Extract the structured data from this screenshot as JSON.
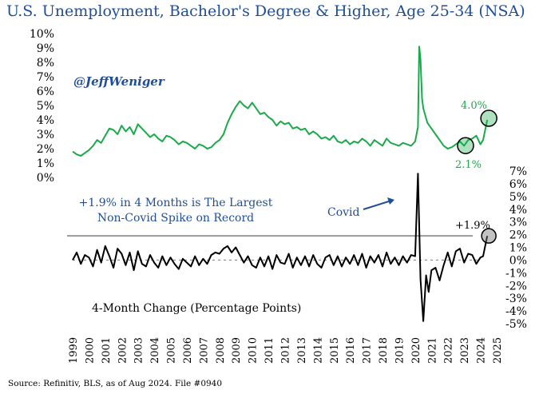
{
  "title": "U.S. Unemployment, Bachelor's Degree & Higher, Age 25-34 (NSA)",
  "source": "Source: Refinitiv, BLS, as of Aug 2024. File #0940",
  "colors": {
    "title": "#1f4e96",
    "upper_line": "#1aaa4a",
    "lower_line": "#000000",
    "reference_line": "#999999",
    "annotation": "#1f4e96"
  },
  "chart_data": [
    {
      "type": "line",
      "panel": "upper",
      "ylim": [
        0,
        10
      ],
      "yticks": [
        "0%",
        "1%",
        "2%",
        "3%",
        "4%",
        "5%",
        "6%",
        "7%",
        "8%",
        "9%",
        "10%"
      ],
      "handle": "@JeffWeniger",
      "series": [
        {
          "x": [
            1999.0,
            1999.25,
            1999.5,
            1999.75,
            2000.0,
            2000.25,
            2000.5,
            2000.75,
            2001.0,
            2001.25,
            2001.5,
            2001.75,
            2002.0,
            2002.25,
            2002.5,
            2002.75,
            2003.0,
            2003.25,
            2003.5,
            2003.75,
            2004.0,
            2004.25,
            2004.5,
            2004.75,
            2005.0,
            2005.25,
            2005.5,
            2005.75,
            2006.0,
            2006.25,
            2006.5,
            2006.75,
            2007.0,
            2007.25,
            2007.5,
            2007.75,
            2008.0,
            2008.25,
            2008.5,
            2008.75,
            2009.0,
            2009.25,
            2009.5,
            2009.75,
            2010.0,
            2010.25,
            2010.5,
            2010.75,
            2011.0,
            2011.25,
            2011.5,
            2011.75,
            2012.0,
            2012.25,
            2012.5,
            2012.75,
            2013.0,
            2013.25,
            2013.5,
            2013.75,
            2014.0,
            2014.25,
            2014.5,
            2014.75,
            2015.0,
            2015.25,
            2015.5,
            2015.75,
            2016.0,
            2016.25,
            2016.5,
            2016.75,
            2017.0,
            2017.25,
            2017.5,
            2017.75,
            2018.0,
            2018.25,
            2018.5,
            2018.75,
            2019.0,
            2019.25,
            2019.5,
            2019.75,
            2020.0,
            2020.17,
            2020.25,
            2020.33,
            2020.42,
            2020.5,
            2020.75,
            2021.0,
            2021.25,
            2021.5,
            2021.75,
            2022.0,
            2022.25,
            2022.5,
            2022.75,
            2023.0,
            2023.25,
            2023.5,
            2023.75,
            2024.0,
            2024.17,
            2024.42
          ],
          "values": [
            1.8,
            1.6,
            1.5,
            1.7,
            1.9,
            2.2,
            2.6,
            2.4,
            2.9,
            3.4,
            3.3,
            3.0,
            3.6,
            3.2,
            3.5,
            3.0,
            3.7,
            3.4,
            3.1,
            2.8,
            3.0,
            2.7,
            2.5,
            2.9,
            2.8,
            2.6,
            2.3,
            2.5,
            2.4,
            2.2,
            2.0,
            2.3,
            2.2,
            2.0,
            2.1,
            2.4,
            2.6,
            3.0,
            3.8,
            4.4,
            4.9,
            5.3,
            5.0,
            4.8,
            5.2,
            4.8,
            4.4,
            4.5,
            4.2,
            4.0,
            3.6,
            3.9,
            3.7,
            3.8,
            3.4,
            3.5,
            3.3,
            3.4,
            3.0,
            3.2,
            3.0,
            2.7,
            2.8,
            2.6,
            2.9,
            2.5,
            2.4,
            2.6,
            2.3,
            2.5,
            2.4,
            2.7,
            2.5,
            2.2,
            2.6,
            2.4,
            2.2,
            2.7,
            2.4,
            2.3,
            2.2,
            2.4,
            2.3,
            2.2,
            2.5,
            3.5,
            9.1,
            8.2,
            5.5,
            4.8,
            3.8,
            3.4,
            3.0,
            2.6,
            2.2,
            2.0,
            2.1,
            2.3,
            2.5,
            2.2,
            2.6,
            2.7,
            2.9,
            2.3,
            2.6,
            4.0
          ]
        }
      ],
      "annotations": [
        "4.0%",
        "2.1%"
      ]
    },
    {
      "type": "line",
      "panel": "lower",
      "ylabel": "4-Month Change (Percentage Points)",
      "ylim": [
        -5,
        7
      ],
      "yticks": [
        "-5%",
        "-4%",
        "-3%",
        "-2%",
        "-1%",
        "0%",
        "1%",
        "2%",
        "3%",
        "4%",
        "5%",
        "6%",
        "7%"
      ],
      "reference_line": 1.9,
      "series": [
        {
          "x": [
            1999.0,
            1999.25,
            1999.5,
            1999.75,
            2000.0,
            2000.25,
            2000.5,
            2000.75,
            2001.0,
            2001.25,
            2001.5,
            2001.75,
            2002.0,
            2002.25,
            2002.5,
            2002.75,
            2003.0,
            2003.25,
            2003.5,
            2003.75,
            2004.0,
            2004.25,
            2004.5,
            2004.75,
            2005.0,
            2005.25,
            2005.5,
            2005.75,
            2006.0,
            2006.25,
            2006.5,
            2006.75,
            2007.0,
            2007.25,
            2007.5,
            2007.75,
            2008.0,
            2008.25,
            2008.5,
            2008.75,
            2009.0,
            2009.25,
            2009.5,
            2009.75,
            2010.0,
            2010.25,
            2010.5,
            2010.75,
            2011.0,
            2011.25,
            2011.5,
            2011.75,
            2012.0,
            2012.25,
            2012.5,
            2012.75,
            2013.0,
            2013.25,
            2013.5,
            2013.75,
            2014.0,
            2014.25,
            2014.5,
            2014.75,
            2015.0,
            2015.25,
            2015.5,
            2015.75,
            2016.0,
            2016.25,
            2016.5,
            2016.75,
            2017.0,
            2017.25,
            2017.5,
            2017.75,
            2018.0,
            2018.25,
            2018.5,
            2018.75,
            2019.0,
            2019.25,
            2019.5,
            2019.75,
            2020.0,
            2020.17,
            2020.33,
            2020.5,
            2020.67,
            2020.83,
            2021.0,
            2021.25,
            2021.5,
            2021.75,
            2022.0,
            2022.25,
            2022.5,
            2022.75,
            2023.0,
            2023.25,
            2023.5,
            2023.75,
            2024.0,
            2024.17,
            2024.42
          ],
          "values": [
            0.0,
            0.6,
            -0.3,
            0.4,
            0.2,
            -0.5,
            0.8,
            -0.2,
            1.1,
            0.3,
            -0.6,
            0.9,
            0.5,
            -0.4,
            0.6,
            -0.8,
            0.7,
            -0.3,
            -0.5,
            0.4,
            -0.2,
            -0.6,
            0.3,
            -0.4,
            0.2,
            -0.3,
            -0.7,
            0.1,
            -0.2,
            -0.5,
            0.3,
            -0.4,
            0.1,
            -0.3,
            0.4,
            0.6,
            0.5,
            0.9,
            1.1,
            0.6,
            1.0,
            0.4,
            -0.2,
            0.3,
            -0.4,
            -0.6,
            0.2,
            -0.5,
            0.3,
            -0.7,
            0.4,
            -0.2,
            -0.3,
            0.5,
            -0.6,
            0.2,
            -0.4,
            0.3,
            -0.5,
            0.4,
            -0.3,
            -0.6,
            0.2,
            0.4,
            -0.4,
            0.3,
            -0.5,
            0.2,
            -0.3,
            0.4,
            -0.4,
            0.5,
            -0.6,
            0.3,
            -0.2,
            0.4,
            -0.5,
            0.6,
            -0.3,
            0.2,
            -0.4,
            0.3,
            -0.2,
            0.4,
            0.3,
            6.8,
            -1.5,
            -4.8,
            -1.2,
            -2.5,
            -0.8,
            -0.6,
            -1.6,
            -0.4,
            0.6,
            -0.5,
            0.7,
            0.9,
            -0.2,
            0.5,
            0.4,
            -0.3,
            0.2,
            0.3,
            1.9
          ]
        }
      ],
      "annotations": [
        "+1.9% in 4 Months is The Largest",
        "Non-Covid Spike on Record",
        "Covid",
        "+1.9%"
      ]
    }
  ],
  "x_axis": {
    "tick_labels": [
      "1999",
      "2000",
      "2001",
      "2002",
      "2003",
      "2004",
      "2005",
      "2006",
      "2007",
      "2008",
      "2009",
      "2010",
      "2011",
      "2012",
      "2013",
      "2014",
      "2015",
      "2016",
      "2017",
      "2018",
      "2019",
      "2020",
      "2021",
      "2022",
      "2023",
      "2024",
      "2025"
    ]
  }
}
